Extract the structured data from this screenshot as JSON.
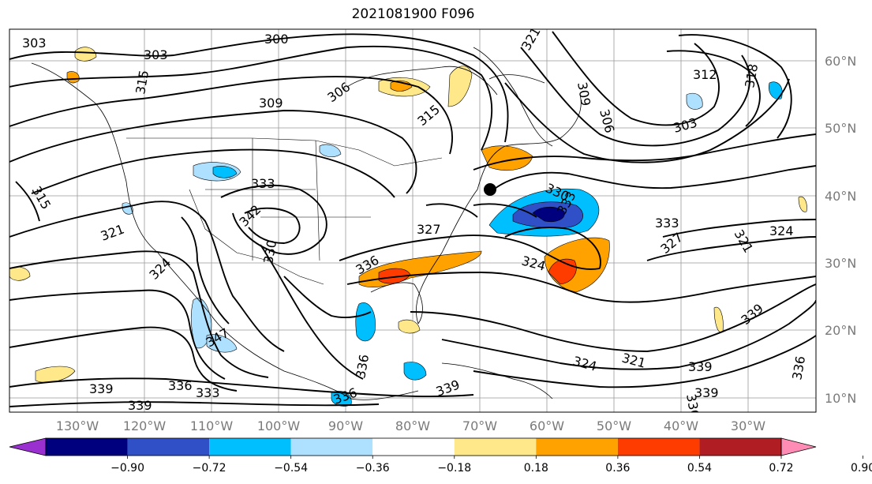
{
  "title": "2021081900 F096",
  "lon_ticks": [
    "130°W",
    "120°W",
    "110°W",
    "100°W",
    "90°W",
    "80°W",
    "70°W",
    "60°W",
    "50°W",
    "40°W",
    "30°W"
  ],
  "lat_ticks": [
    "60°N",
    "50°N",
    "40°N",
    "30°N",
    "20°N",
    "10°N"
  ],
  "contour_labels": [
    "303",
    "300",
    "303",
    "306",
    "309",
    "315",
    "321",
    "318",
    "312",
    "303",
    "306",
    "309",
    "315",
    "330",
    "333",
    "315",
    "342",
    "333",
    "327",
    "321",
    "324",
    "330",
    "336",
    "324",
    "333",
    "327",
    "321",
    "324",
    "339",
    "347",
    "336",
    "324",
    "321",
    "339",
    "336",
    "339",
    "339",
    "336",
    "339",
    "333",
    "336",
    "336",
    "339"
  ],
  "colorbar": {
    "labels": [
      "−0.90",
      "−0.72",
      "−0.54",
      "−0.36",
      "−0.18",
      "0.18",
      "0.36",
      "0.54",
      "0.72",
      "0.90"
    ],
    "colors": [
      "#9b30d0",
      "#00007f",
      "#3050c8",
      "#00bfff",
      "#aee0ff",
      "#ffffff",
      "#ffe88a",
      "#ffa200",
      "#ff3c00",
      "#b01e23",
      "#ff8cb4"
    ]
  },
  "marker": "station-dot"
}
